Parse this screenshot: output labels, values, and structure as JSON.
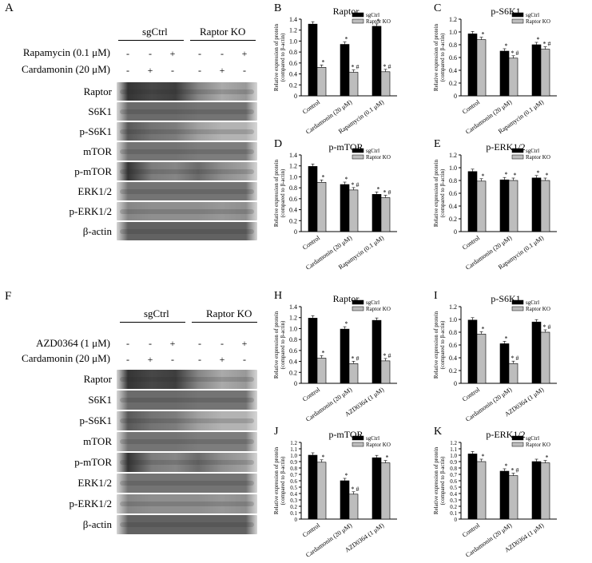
{
  "blots": [
    {
      "letter": "A",
      "groups": [
        "sgCtrl",
        "Raptor KO"
      ],
      "treatments": [
        {
          "label": "Rapamycin (0.1 μM)",
          "signs": [
            "-",
            "-",
            "+",
            "-",
            "-",
            "+"
          ]
        },
        {
          "label": "Cardamonin (20 μM)",
          "signs": [
            "-",
            "+",
            "-",
            "-",
            "+",
            "-"
          ]
        }
      ],
      "rows": [
        "Raptor",
        "S6K1",
        "p-S6K1",
        "mTOR",
        "p-mTOR",
        "ERK1/2",
        "p-ERK1/2",
        "β-actin"
      ]
    },
    {
      "letter": "F",
      "groups": [
        "sgCtrl",
        "Raptor KO"
      ],
      "treatments": [
        {
          "label": "AZD0364 (1 μM)",
          "signs": [
            "-",
            "-",
            "+",
            "-",
            "-",
            "+"
          ]
        },
        {
          "label": "Cardamonin (20 μM)",
          "signs": [
            "-",
            "+",
            "-",
            "-",
            "+",
            "-"
          ]
        }
      ],
      "rows": [
        "Raptor",
        "S6K1",
        "p-S6K1",
        "mTOR",
        "p-mTOR",
        "ERK1/2",
        "p-ERK1/2",
        "β-actin"
      ]
    }
  ],
  "chart_data": [
    {
      "letter": "B",
      "type": "bar",
      "title": "Raptor",
      "ylabel": "Relative expression of protein (compared to β-actin)",
      "ylim": [
        0,
        1.4
      ],
      "yticks": [
        "0",
        "0.2",
        "0.4",
        "0.6",
        "0.8",
        "1.0",
        "1.2",
        "1.4"
      ],
      "categories": [
        "Control",
        "Cardamonin (20 μM)",
        "Rapamycin (0.1 μM)"
      ],
      "series": [
        {
          "name": "sgCtrl",
          "values": [
            1.31,
            0.94,
            1.27
          ]
        },
        {
          "name": "Raptor KO",
          "values": [
            0.52,
            0.43,
            0.44
          ]
        }
      ],
      "marks_ctrl": [
        "",
        "*",
        "*"
      ],
      "marks_ko": [
        "*",
        "* #",
        "* #"
      ],
      "legend": "top-right"
    },
    {
      "letter": "C",
      "type": "bar",
      "title": "p-S6K1",
      "ylabel": "Relative expression of protein (compared to β-actin)",
      "ylim": [
        0,
        1.2
      ],
      "yticks": [
        "0",
        "0.2",
        "0.4",
        "0.6",
        "0.8",
        "1.0",
        "1.2"
      ],
      "categories": [
        "Control",
        "Cardamonin (20 μM)",
        "Rapamycin (0.1 μM)"
      ],
      "series": [
        {
          "name": "sgCtrl",
          "values": [
            0.97,
            0.7,
            0.8
          ]
        },
        {
          "name": "Raptor KO",
          "values": [
            0.88,
            0.59,
            0.73
          ]
        }
      ],
      "marks_ctrl": [
        "",
        "*",
        "*"
      ],
      "marks_ko": [
        "*",
        "* #",
        "* #"
      ],
      "legend": "top-right"
    },
    {
      "letter": "D",
      "type": "bar",
      "title": "p-mTOR",
      "ylabel": "Relative expression of protein (compared to β-actin)",
      "ylim": [
        0,
        1.4
      ],
      "yticks": [
        "0",
        "0.2",
        "0.4",
        "0.6",
        "0.8",
        "1.0",
        "1.2",
        "1.4"
      ],
      "categories": [
        "Control",
        "Cardamonin (20 μM)",
        "Rapamycin (0.1 μM)"
      ],
      "series": [
        {
          "name": "sgCtrl",
          "values": [
            1.19,
            0.86,
            0.68
          ]
        },
        {
          "name": "Raptor KO",
          "values": [
            0.9,
            0.76,
            0.62
          ]
        }
      ],
      "marks_ctrl": [
        "",
        "*",
        "*"
      ],
      "marks_ko": [
        "*",
        "* #",
        "* #"
      ],
      "legend": "top-right"
    },
    {
      "letter": "E",
      "type": "bar",
      "title": "p-ERK1/2",
      "ylabel": "Relative expression of protein (compared to β-actin)",
      "ylim": [
        0,
        1.2
      ],
      "yticks": [
        "0",
        "0.2",
        "0.4",
        "0.6",
        "0.8",
        "1.0",
        "1.2"
      ],
      "categories": [
        "Control",
        "Cardamonin (20 μM)",
        "Rapamycin (0.1 μM)"
      ],
      "series": [
        {
          "name": "sgCtrl",
          "values": [
            0.94,
            0.81,
            0.84
          ]
        },
        {
          "name": "Raptor KO",
          "values": [
            0.79,
            0.8,
            0.8
          ]
        }
      ],
      "marks_ctrl": [
        "",
        "*",
        "*"
      ],
      "marks_ko": [
        "*",
        "*",
        "*"
      ],
      "legend": "top-right"
    },
    {
      "letter": "H",
      "type": "bar",
      "title": "Raptor",
      "ylabel": "Relative expression of protein (compared to β-actin)",
      "ylim": [
        0,
        1.4
      ],
      "yticks": [
        "0",
        "0.2",
        "0.4",
        "0.6",
        "0.8",
        "1.0",
        "1.2",
        "1.4"
      ],
      "categories": [
        "Control",
        "Cardamonin (20 μM)",
        "AZD0364 (1 μM)"
      ],
      "series": [
        {
          "name": "sgCtrl",
          "values": [
            1.19,
            0.99,
            1.15
          ]
        },
        {
          "name": "Raptor KO",
          "values": [
            0.46,
            0.36,
            0.41
          ]
        }
      ],
      "marks_ctrl": [
        "",
        "*",
        ""
      ],
      "marks_ko": [
        "*",
        "* #",
        "* #"
      ],
      "legend": "top-right"
    },
    {
      "letter": "I",
      "type": "bar",
      "title": "p-S6K1",
      "ylabel": "Relative expression of protein (compared to β-actin)",
      "ylim": [
        0,
        1.2
      ],
      "yticks": [
        "0",
        "0.2",
        "0.4",
        "0.6",
        "0.8",
        "1.0",
        "1.2"
      ],
      "categories": [
        "Control",
        "Cardamonin (20 μM)",
        "AZD0364 (1 μM)"
      ],
      "series": [
        {
          "name": "sgCtrl",
          "values": [
            0.99,
            0.62,
            0.96
          ]
        },
        {
          "name": "Raptor KO",
          "values": [
            0.77,
            0.31,
            0.8
          ]
        }
      ],
      "marks_ctrl": [
        "",
        "*",
        ""
      ],
      "marks_ko": [
        "*",
        "* #",
        "* #"
      ],
      "legend": "top-right"
    },
    {
      "letter": "J",
      "type": "bar",
      "title": "p-mTOR",
      "ylabel": "Relative expression of protein (compared to β-actin)",
      "ylim": [
        0,
        1.2
      ],
      "yticks": [
        "0",
        "0.1",
        "0.2",
        "0.3",
        "0.4",
        "0.5",
        "0.6",
        "0.7",
        "0.8",
        "0.9",
        "1.0",
        "1.1",
        "1.2"
      ],
      "categories": [
        "Control",
        "Cardamonin (20 μM)",
        "AZD0364 (1 μM)"
      ],
      "series": [
        {
          "name": "sgCtrl",
          "values": [
            1.0,
            0.6,
            0.96
          ]
        },
        {
          "name": "Raptor KO",
          "values": [
            0.89,
            0.39,
            0.88
          ]
        }
      ],
      "marks_ctrl": [
        "",
        "*",
        ""
      ],
      "marks_ko": [
        "*",
        "* #",
        "*"
      ],
      "legend": "top-right"
    },
    {
      "letter": "K",
      "type": "bar",
      "title": "p-ERK1/2",
      "ylabel": "Relative expression of protein (compared to β-actin)",
      "ylim": [
        0,
        1.2
      ],
      "yticks": [
        "0",
        "0.1",
        "0.2",
        "0.3",
        "0.4",
        "0.5",
        "0.6",
        "0.7",
        "0.8",
        "0.9",
        "1.0",
        "1.1",
        "1.2"
      ],
      "categories": [
        "Control",
        "Cardamonin (20 μM)",
        "AZD0364 (1 μM)"
      ],
      "series": [
        {
          "name": "sgCtrl",
          "values": [
            1.02,
            0.75,
            0.9
          ]
        },
        {
          "name": "Raptor KO",
          "values": [
            0.9,
            0.68,
            0.88
          ]
        }
      ],
      "marks_ctrl": [
        "",
        "*",
        ""
      ],
      "marks_ko": [
        "*",
        "* #",
        "*"
      ],
      "legend": "top-right"
    }
  ],
  "colors": {
    "sgCtrl": "#000000",
    "raptor_ko": "#bdbdbd"
  }
}
